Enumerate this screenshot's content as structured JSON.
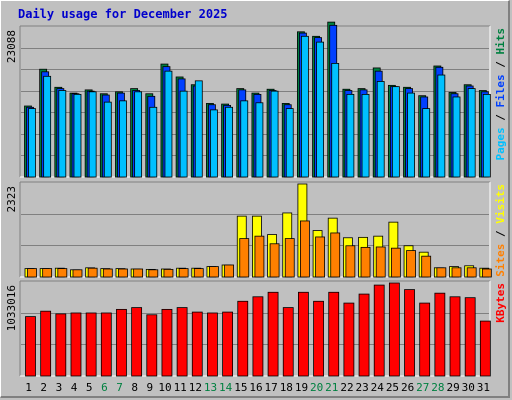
{
  "title": "Daily usage for December 2025",
  "colors": {
    "hits": "#008040",
    "files": "#0040ff",
    "pages": "#00c0ff",
    "visits": "#ffff00",
    "sites": "#ff8000",
    "kbytes": "#ff0000",
    "weekend_day": "#008040",
    "weekday": "#000000"
  },
  "chart_data": [
    {
      "type": "bar",
      "name": "hits-files-pages",
      "ymax_label": "23088",
      "ymax": 23088,
      "legend": [
        "Hits",
        "Files",
        "Pages"
      ],
      "categories": [
        "1",
        "2",
        "3",
        "4",
        "5",
        "6",
        "7",
        "8",
        "9",
        "10",
        "11",
        "12",
        "13",
        "14",
        "15",
        "16",
        "17",
        "18",
        "19",
        "20",
        "21",
        "22",
        "23",
        "24",
        "25",
        "26",
        "27",
        "28",
        "29",
        "30",
        "31"
      ],
      "series": [
        {
          "name": "Hits",
          "values": [
            11000,
            16700,
            13900,
            13000,
            13500,
            12900,
            13200,
            13700,
            12900,
            17500,
            15500,
            14300,
            11400,
            11300,
            13700,
            13000,
            13600,
            11400,
            22500,
            21800,
            24000,
            13600,
            13700,
            16900,
            14200,
            13900,
            12600,
            17200,
            13100,
            14300,
            13400
          ]
        },
        {
          "name": "Files",
          "values": [
            10800,
            16300,
            13700,
            12900,
            13300,
            12700,
            13000,
            13400,
            12500,
            17100,
            15200,
            14100,
            11200,
            11100,
            13500,
            12800,
            13400,
            11200,
            22300,
            21600,
            23500,
            13400,
            13500,
            16400,
            14000,
            13700,
            12400,
            17000,
            12900,
            14100,
            13200
          ]
        },
        {
          "name": "Pages",
          "values": [
            10600,
            15600,
            13400,
            12800,
            13200,
            11600,
            11800,
            13200,
            10800,
            16400,
            13300,
            14900,
            10400,
            10800,
            11800,
            11500,
            13300,
            10600,
            21800,
            20900,
            17600,
            12800,
            12800,
            14800,
            14000,
            13000,
            10600,
            15800,
            12400,
            13700,
            12800
          ]
        }
      ]
    },
    {
      "type": "bar",
      "name": "visits-sites",
      "ymax_label": "2323",
      "ymax": 2323,
      "legend": [
        "Visits",
        "Sites"
      ],
      "categories": [
        "1",
        "2",
        "3",
        "4",
        "5",
        "6",
        "7",
        "8",
        "9",
        "10",
        "11",
        "12",
        "13",
        "14",
        "15",
        "16",
        "17",
        "18",
        "19",
        "20",
        "21",
        "22",
        "23",
        "24",
        "25",
        "26",
        "27",
        "28",
        "29",
        "30",
        "31"
      ],
      "series": [
        {
          "name": "Visits",
          "values": [
            210,
            210,
            220,
            180,
            230,
            210,
            210,
            200,
            190,
            200,
            220,
            220,
            260,
            300,
            1520,
            1520,
            1060,
            1600,
            2323,
            1160,
            1470,
            980,
            990,
            1020,
            1370,
            780,
            620,
            230,
            260,
            280,
            220
          ]
        },
        {
          "name": "Sites",
          "values": [
            210,
            210,
            210,
            180,
            220,
            200,
            200,
            200,
            180,
            190,
            210,
            210,
            260,
            300,
            960,
            1020,
            830,
            960,
            1400,
            1000,
            1100,
            780,
            740,
            750,
            720,
            660,
            520,
            230,
            230,
            230,
            200
          ]
        }
      ]
    },
    {
      "type": "bar",
      "name": "kbytes",
      "ymax_label": "1033016",
      "ymax": 1033016,
      "legend": [
        "KBytes"
      ],
      "categories": [
        "1",
        "2",
        "3",
        "4",
        "5",
        "6",
        "7",
        "8",
        "9",
        "10",
        "11",
        "12",
        "13",
        "14",
        "15",
        "16",
        "17",
        "18",
        "19",
        "20",
        "21",
        "22",
        "23",
        "24",
        "25",
        "26",
        "27",
        "28",
        "29",
        "30",
        "31"
      ],
      "series": [
        {
          "name": "KBytes",
          "values": [
            660000,
            720000,
            690000,
            700000,
            700000,
            700000,
            740000,
            760000,
            680000,
            740000,
            760000,
            710000,
            700000,
            710000,
            830000,
            880000,
            930000,
            760000,
            930000,
            830000,
            930000,
            810000,
            910000,
            1010000,
            1033016,
            960000,
            810000,
            920000,
            880000,
            870000,
            610000
          ]
        }
      ]
    }
  ],
  "weekend_days": [
    "6",
    "7",
    "13",
    "14",
    "20",
    "21",
    "27",
    "28"
  ]
}
